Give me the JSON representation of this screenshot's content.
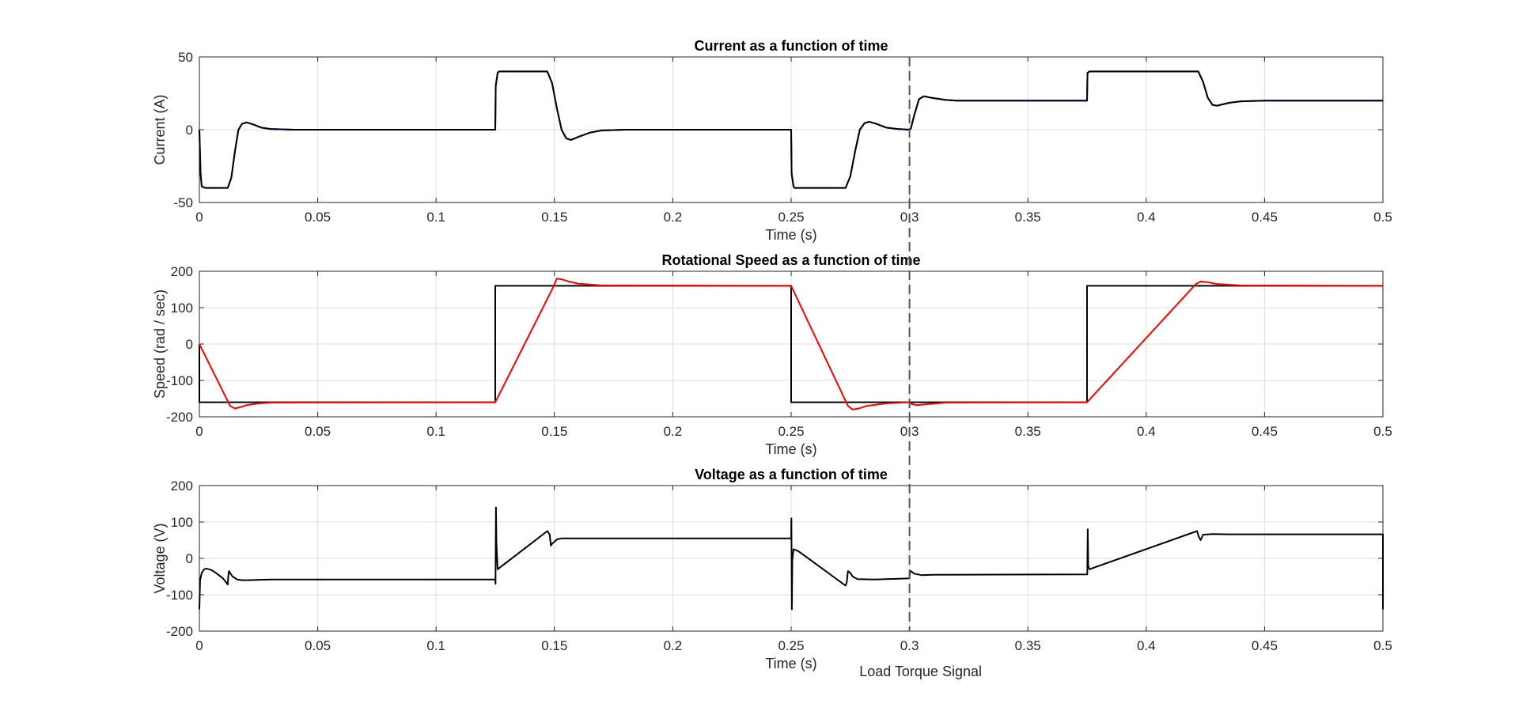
{
  "chart_data": [
    {
      "type": "line",
      "title": "Current as a function of time",
      "xlabel": "Time (s)",
      "ylabel": "Current (A)",
      "xlim": [
        0,
        0.5
      ],
      "ylim": [
        -50,
        50
      ],
      "xticks": [
        "0",
        "0.05",
        "0.1",
        "0.15",
        "0.2",
        "0.25",
        "0.3",
        "0.35",
        "0.4",
        "0.45",
        "0.5"
      ],
      "yticks": [
        "-50",
        "0",
        "50"
      ],
      "grid": true,
      "series": [
        {
          "color": "#0000ff",
          "x": [
            0,
            0.0005,
            0.001,
            0.0025,
            0.012,
            0.0135,
            0.015,
            0.0165,
            0.018,
            0.02,
            0.023,
            0.026,
            0.03,
            0.04,
            0.05,
            0.125,
            0.1252,
            0.126,
            0.1265,
            0.147,
            0.149,
            0.151,
            0.153,
            0.155,
            0.157,
            0.16,
            0.165,
            0.17,
            0.18,
            0.25,
            0.2502,
            0.251,
            0.2515,
            0.273,
            0.275,
            0.277,
            0.279,
            0.281,
            0.283,
            0.286,
            0.29,
            0.295,
            0.3,
            0.3005,
            0.302,
            0.304,
            0.306,
            0.309,
            0.315,
            0.32,
            0.33,
            0.375,
            0.3752,
            0.376,
            0.422,
            0.424,
            0.426,
            0.428,
            0.43,
            0.435,
            0.44,
            0.45,
            0.5
          ],
          "y": [
            0,
            -30,
            -39,
            -40,
            -40,
            -33,
            -15,
            0,
            4,
            5,
            3.5,
            1.5,
            0.5,
            0,
            0,
            0,
            30,
            39,
            40,
            40,
            32,
            15,
            0,
            -6,
            -7,
            -5,
            -2,
            -0.5,
            0,
            0,
            -30,
            -39,
            -40,
            -40,
            -32,
            -15,
            0,
            4.5,
            5.5,
            4,
            1.5,
            0.5,
            0,
            0.5,
            10,
            21,
            23,
            22,
            20.5,
            20,
            20,
            20,
            39,
            40,
            40,
            33,
            22,
            17,
            16.5,
            18.5,
            19.5,
            20,
            20
          ]
        },
        {
          "color": "#000000",
          "x": [
            0,
            0.0005,
            0.001,
            0.0025,
            0.012,
            0.0135,
            0.015,
            0.0165,
            0.018,
            0.02,
            0.023,
            0.026,
            0.03,
            0.04,
            0.05,
            0.125,
            0.1252,
            0.126,
            0.1265,
            0.147,
            0.149,
            0.151,
            0.153,
            0.155,
            0.157,
            0.16,
            0.165,
            0.17,
            0.18,
            0.25,
            0.2502,
            0.251,
            0.2515,
            0.273,
            0.275,
            0.277,
            0.279,
            0.281,
            0.283,
            0.286,
            0.29,
            0.295,
            0.3,
            0.3005,
            0.302,
            0.304,
            0.306,
            0.309,
            0.315,
            0.32,
            0.33,
            0.375,
            0.3752,
            0.376,
            0.422,
            0.424,
            0.426,
            0.428,
            0.43,
            0.435,
            0.44,
            0.45,
            0.5
          ],
          "y": [
            0,
            -30,
            -39,
            -40,
            -40,
            -33,
            -15,
            0,
            4,
            5,
            3.5,
            1.5,
            0.5,
            0,
            0,
            0,
            30,
            39,
            40,
            40,
            32,
            15,
            0,
            -6,
            -7,
            -5,
            -2,
            -0.5,
            0,
            0,
            -30,
            -39,
            -40,
            -40,
            -32,
            -15,
            0,
            4.5,
            5.5,
            4,
            1.5,
            0.5,
            0,
            0.5,
            10,
            21,
            23,
            22,
            20.5,
            20,
            20,
            20,
            39,
            40,
            40,
            33,
            22,
            17,
            16.5,
            18.5,
            19.5,
            20,
            20
          ]
        }
      ]
    },
    {
      "type": "line",
      "title": "Rotational Speed as a function of time",
      "xlabel": "Time (s)",
      "ylabel": "Speed (rad / sec)",
      "xlim": [
        0,
        0.5
      ],
      "ylim": [
        -200,
        200
      ],
      "xticks": [
        "0",
        "0.05",
        "0.1",
        "0.15",
        "0.2",
        "0.25",
        "0.3",
        "0.35",
        "0.4",
        "0.45",
        "0.5"
      ],
      "yticks": [
        "-200",
        "-100",
        "0",
        "100",
        "200"
      ],
      "grid": true,
      "series": [
        {
          "color": "#000000",
          "x": [
            0,
            0,
            0.125,
            0.125,
            0.25,
            0.25,
            0.375,
            0.375,
            0.5
          ],
          "y": [
            0,
            -160,
            -160,
            160,
            160,
            -160,
            -160,
            160,
            160
          ]
        },
        {
          "color": "#ff0000",
          "x": [
            0,
            0.013,
            0.015,
            0.017,
            0.02,
            0.025,
            0.03,
            0.125,
            0.149,
            0.151,
            0.153,
            0.156,
            0.16,
            0.17,
            0.25,
            0.274,
            0.276,
            0.278,
            0.282,
            0.29,
            0.3,
            0.301,
            0.303,
            0.308,
            0.315,
            0.375,
            0.421,
            0.423,
            0.426,
            0.43,
            0.44,
            0.5
          ],
          "y": [
            0,
            -170,
            -177,
            -174,
            -168,
            -163,
            -161,
            -160,
            150,
            180,
            178,
            172,
            166,
            161,
            160,
            -170,
            -180,
            -178,
            -170,
            -163,
            -160,
            -165,
            -168,
            -165,
            -161,
            -160,
            165,
            172,
            170,
            165,
            161,
            160
          ]
        }
      ]
    },
    {
      "type": "line",
      "title": "Voltage as a function of time",
      "xlabel": "Time (s)",
      "ylabel": "Voltage (V)",
      "xlim": [
        0,
        0.5
      ],
      "ylim": [
        -200,
        200
      ],
      "xticks": [
        "0",
        "0.05",
        "0.1",
        "0.15",
        "0.2",
        "0.25",
        "0.3",
        "0.35",
        "0.4",
        "0.45",
        "0.5"
      ],
      "yticks": [
        "-200",
        "-100",
        "0",
        "100",
        "200"
      ],
      "grid": true,
      "series": [
        {
          "color": "#000000",
          "x": [
            0,
            0.0003,
            0.001,
            0.002,
            0.003,
            0.005,
            0.007,
            0.01,
            0.012,
            0.0122,
            0.0125,
            0.013,
            0.014,
            0.016,
            0.018,
            0.02,
            0.03,
            0.125,
            0.1251,
            0.1253,
            0.1255,
            0.126,
            0.147,
            0.148,
            0.1485,
            0.149,
            0.151,
            0.153,
            0.16,
            0.25,
            0.2501,
            0.2503,
            0.2505,
            0.251,
            0.253,
            0.273,
            0.2735,
            0.274,
            0.275,
            0.276,
            0.278,
            0.285,
            0.3,
            0.3002,
            0.3005,
            0.302,
            0.305,
            0.31,
            0.375,
            0.3751,
            0.3753,
            0.3755,
            0.376,
            0.4215,
            0.4222,
            0.423,
            0.424,
            0.428,
            0.435,
            0.5,
            0.5
          ],
          "y": [
            -140,
            -60,
            -40,
            -30,
            -28,
            -32,
            -40,
            -55,
            -72,
            -50,
            -35,
            -40,
            -50,
            -58,
            -60,
            -60,
            -58,
            -58,
            -70,
            140,
            40,
            -30,
            75,
            65,
            35,
            40,
            52,
            55,
            55,
            55,
            110,
            -140,
            -5,
            25,
            20,
            -75,
            -65,
            -35,
            -40,
            -50,
            -57,
            -58,
            -55,
            -38,
            -35,
            -42,
            -46,
            -45,
            -44,
            -44,
            80,
            -20,
            -30,
            75,
            60,
            50,
            65,
            67,
            66,
            66,
            -140
          ]
        }
      ]
    }
  ],
  "annotation": {
    "vline_x": 0.3,
    "label": "Load Torque Signal"
  }
}
